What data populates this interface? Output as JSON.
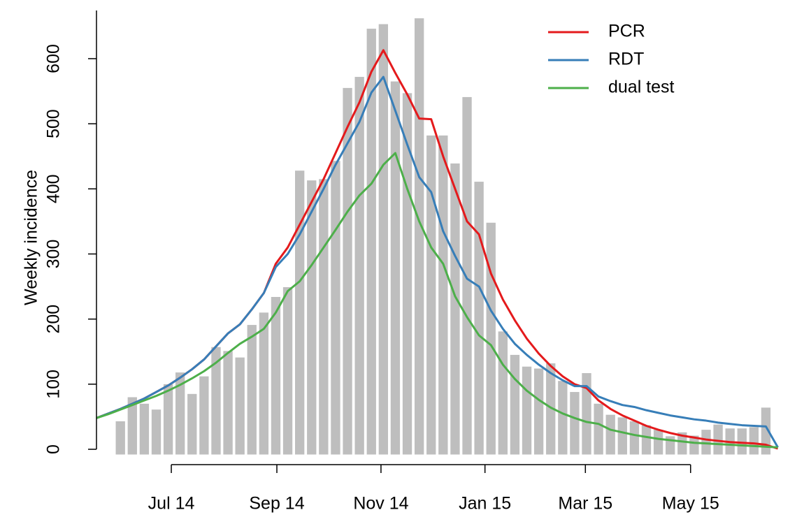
{
  "chart_data": {
    "type": "bar-line",
    "y_label": "Weekly incidence",
    "x": [
      0,
      1,
      2,
      3,
      4,
      5,
      6,
      7,
      8,
      9,
      10,
      11,
      12,
      13,
      14,
      15,
      16,
      17,
      18,
      19,
      20,
      21,
      22,
      23,
      24,
      25,
      26,
      27,
      28,
      29,
      30,
      31,
      32,
      33,
      34,
      35,
      36,
      37,
      38,
      39,
      40,
      41,
      42,
      43,
      44,
      45,
      46,
      47,
      48,
      49,
      50,
      51,
      52,
      53,
      54,
      55,
      56,
      57
    ],
    "values": [
      null,
      null,
      43,
      80,
      70,
      61,
      100,
      118,
      85,
      112,
      157,
      151,
      141,
      191,
      210,
      234,
      249,
      428,
      413,
      415,
      443,
      555,
      572,
      646,
      653,
      565,
      547,
      662,
      482,
      482,
      439,
      541,
      411,
      348,
      181,
      145,
      127,
      124,
      132,
      105,
      88,
      117,
      70,
      53,
      49,
      43,
      37,
      30,
      20,
      26,
      21,
      30,
      38,
      32,
      32,
      34,
      64,
      null
    ],
    "color": "#bebebe",
    "series": [
      {
        "name": "PCR",
        "color": "#e41a1c",
        "values": [
          48,
          55,
          62,
          70,
          78,
          88,
          98,
          110,
          123,
          138,
          158,
          178,
          192,
          215,
          240,
          285,
          310,
          345,
          380,
          415,
          455,
          495,
          533,
          580,
          613,
          578,
          545,
          508,
          507,
          450,
          400,
          350,
          330,
          270,
          230,
          198,
          170,
          147,
          128,
          112,
          100,
          94,
          75,
          62,
          52,
          44,
          36,
          30,
          25,
          21,
          18,
          15,
          13,
          11,
          10,
          9,
          7,
          1
        ]
      },
      {
        "name": "RDT",
        "color": "#377eb8",
        "values": [
          48,
          55,
          62,
          70,
          78,
          88,
          98,
          110,
          123,
          138,
          158,
          178,
          192,
          215,
          240,
          280,
          300,
          330,
          365,
          400,
          437,
          470,
          503,
          548,
          572,
          520,
          468,
          418,
          395,
          335,
          297,
          262,
          250,
          213,
          185,
          162,
          145,
          130,
          117,
          106,
          97,
          97,
          81,
          74,
          68,
          65,
          60,
          56,
          52,
          49,
          46,
          44,
          41,
          39,
          37,
          36,
          35,
          3
        ]
      },
      {
        "name": "dual test",
        "color": "#4daf4a",
        "values": [
          48,
          54,
          61,
          68,
          75,
          82,
          90,
          99,
          109,
          120,
          133,
          148,
          162,
          173,
          185,
          210,
          243,
          258,
          283,
          310,
          337,
          365,
          390,
          408,
          437,
          455,
          400,
          350,
          310,
          285,
          235,
          203,
          175,
          160,
          130,
          108,
          90,
          76,
          64,
          55,
          48,
          42,
          39,
          30,
          26,
          22,
          19,
          16,
          14,
          12,
          10,
          9,
          8,
          7,
          6,
          5,
          4,
          3
        ]
      }
    ],
    "xlim": [
      0,
      57.2
    ],
    "xticks": [
      {
        "value": 6.26,
        "label": "Jul 14"
      },
      {
        "value": 15.09,
        "label": "Sep 14"
      },
      {
        "value": 23.8,
        "label": "Nov 14"
      },
      {
        "value": 32.5,
        "label": "Jan 15"
      },
      {
        "value": 40.9,
        "label": "Mar 15"
      },
      {
        "value": 49.7,
        "label": "May 15"
      }
    ],
    "ylim": [
      -8,
      674
    ],
    "yticks": [
      0,
      100,
      200,
      300,
      400,
      500,
      600
    ],
    "legend": "top-right"
  }
}
